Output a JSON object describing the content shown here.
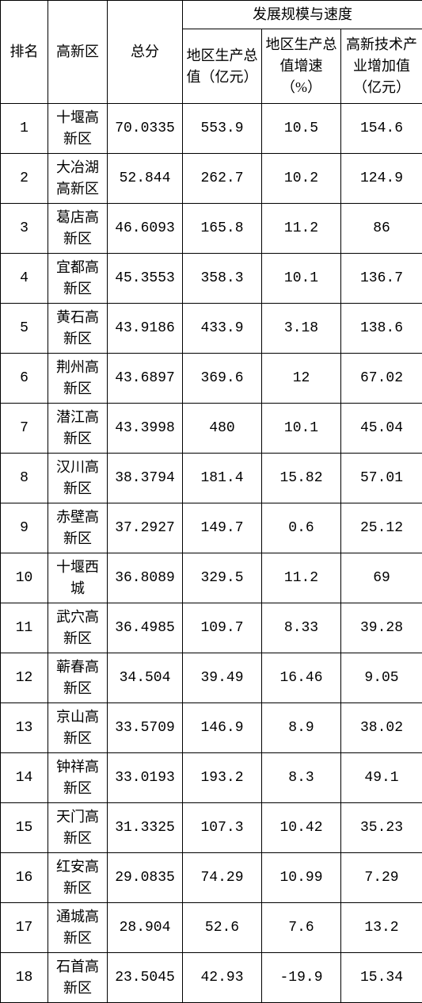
{
  "header": {
    "rank": "排名",
    "zone": "高新区",
    "score": "总分",
    "group": "发展规模与速度",
    "gdp": "地区生产总值（亿元）",
    "growth": "地区生产总值增速（%）",
    "hightech": "高新技术产业增加值（亿元）"
  },
  "styling": {
    "border_color": "#000000",
    "background_color": "#ffffff",
    "text_color": "#000000",
    "font_family": "SimSun",
    "header_fontsize": 18,
    "cell_fontsize": 18,
    "col_widths": {
      "rank": 60,
      "zone": 75,
      "score": 95,
      "gdp": 100,
      "growth": 100,
      "hightech": 103
    }
  },
  "rows": [
    {
      "rank": "1",
      "zone": "十堰高新区",
      "score": "70.0335",
      "gdp": "553.9",
      "growth": "10.5",
      "hightech": "154.6"
    },
    {
      "rank": "2",
      "zone": "大冶湖高新区",
      "score": "52.844",
      "gdp": "262.7",
      "growth": "10.2",
      "hightech": "124.9"
    },
    {
      "rank": "3",
      "zone": "葛店高新区",
      "score": "46.6093",
      "gdp": "165.8",
      "growth": "11.2",
      "hightech": "86"
    },
    {
      "rank": "4",
      "zone": "宜都高新区",
      "score": "45.3553",
      "gdp": "358.3",
      "growth": "10.1",
      "hightech": "136.7"
    },
    {
      "rank": "5",
      "zone": "黄石高新区",
      "score": "43.9186",
      "gdp": "433.9",
      "growth": "3.18",
      "hightech": "138.6"
    },
    {
      "rank": "6",
      "zone": "荆州高新区",
      "score": "43.6897",
      "gdp": "369.6",
      "growth": "12",
      "hightech": "67.02"
    },
    {
      "rank": "7",
      "zone": "潜江高新区",
      "score": "43.3998",
      "gdp": "480",
      "growth": "10.1",
      "hightech": "45.04"
    },
    {
      "rank": "8",
      "zone": "汉川高新区",
      "score": "38.3794",
      "gdp": "181.4",
      "growth": "15.82",
      "hightech": "57.01"
    },
    {
      "rank": "9",
      "zone": "赤壁高新区",
      "score": "37.2927",
      "gdp": "149.7",
      "growth": "0.6",
      "hightech": "25.12"
    },
    {
      "rank": "10",
      "zone": "十堰西城",
      "score": "36.8089",
      "gdp": "329.5",
      "growth": "11.2",
      "hightech": "69"
    },
    {
      "rank": "11",
      "zone": "武穴高新区",
      "score": "36.4985",
      "gdp": "109.7",
      "growth": "8.33",
      "hightech": "39.28"
    },
    {
      "rank": "12",
      "zone": "蕲春高新区",
      "score": "34.504",
      "gdp": "39.49",
      "growth": "16.46",
      "hightech": "9.05"
    },
    {
      "rank": "13",
      "zone": "京山高新区",
      "score": "33.5709",
      "gdp": "146.9",
      "growth": "8.9",
      "hightech": "38.02"
    },
    {
      "rank": "14",
      "zone": "钟祥高新区",
      "score": "33.0193",
      "gdp": "193.2",
      "growth": "8.3",
      "hightech": "49.1"
    },
    {
      "rank": "15",
      "zone": "天门高新区",
      "score": "31.3325",
      "gdp": "107.3",
      "growth": "10.42",
      "hightech": "35.23"
    },
    {
      "rank": "16",
      "zone": "红安高新区",
      "score": "29.0835",
      "gdp": "74.29",
      "growth": "10.99",
      "hightech": "7.29"
    },
    {
      "rank": "17",
      "zone": "通城高新区",
      "score": "28.904",
      "gdp": "52.6",
      "growth": "7.6",
      "hightech": "13.2"
    },
    {
      "rank": "18",
      "zone": "石首高新区",
      "score": "23.5045",
      "gdp": "42.93",
      "growth": "-19.9",
      "hightech": "15.34"
    }
  ]
}
